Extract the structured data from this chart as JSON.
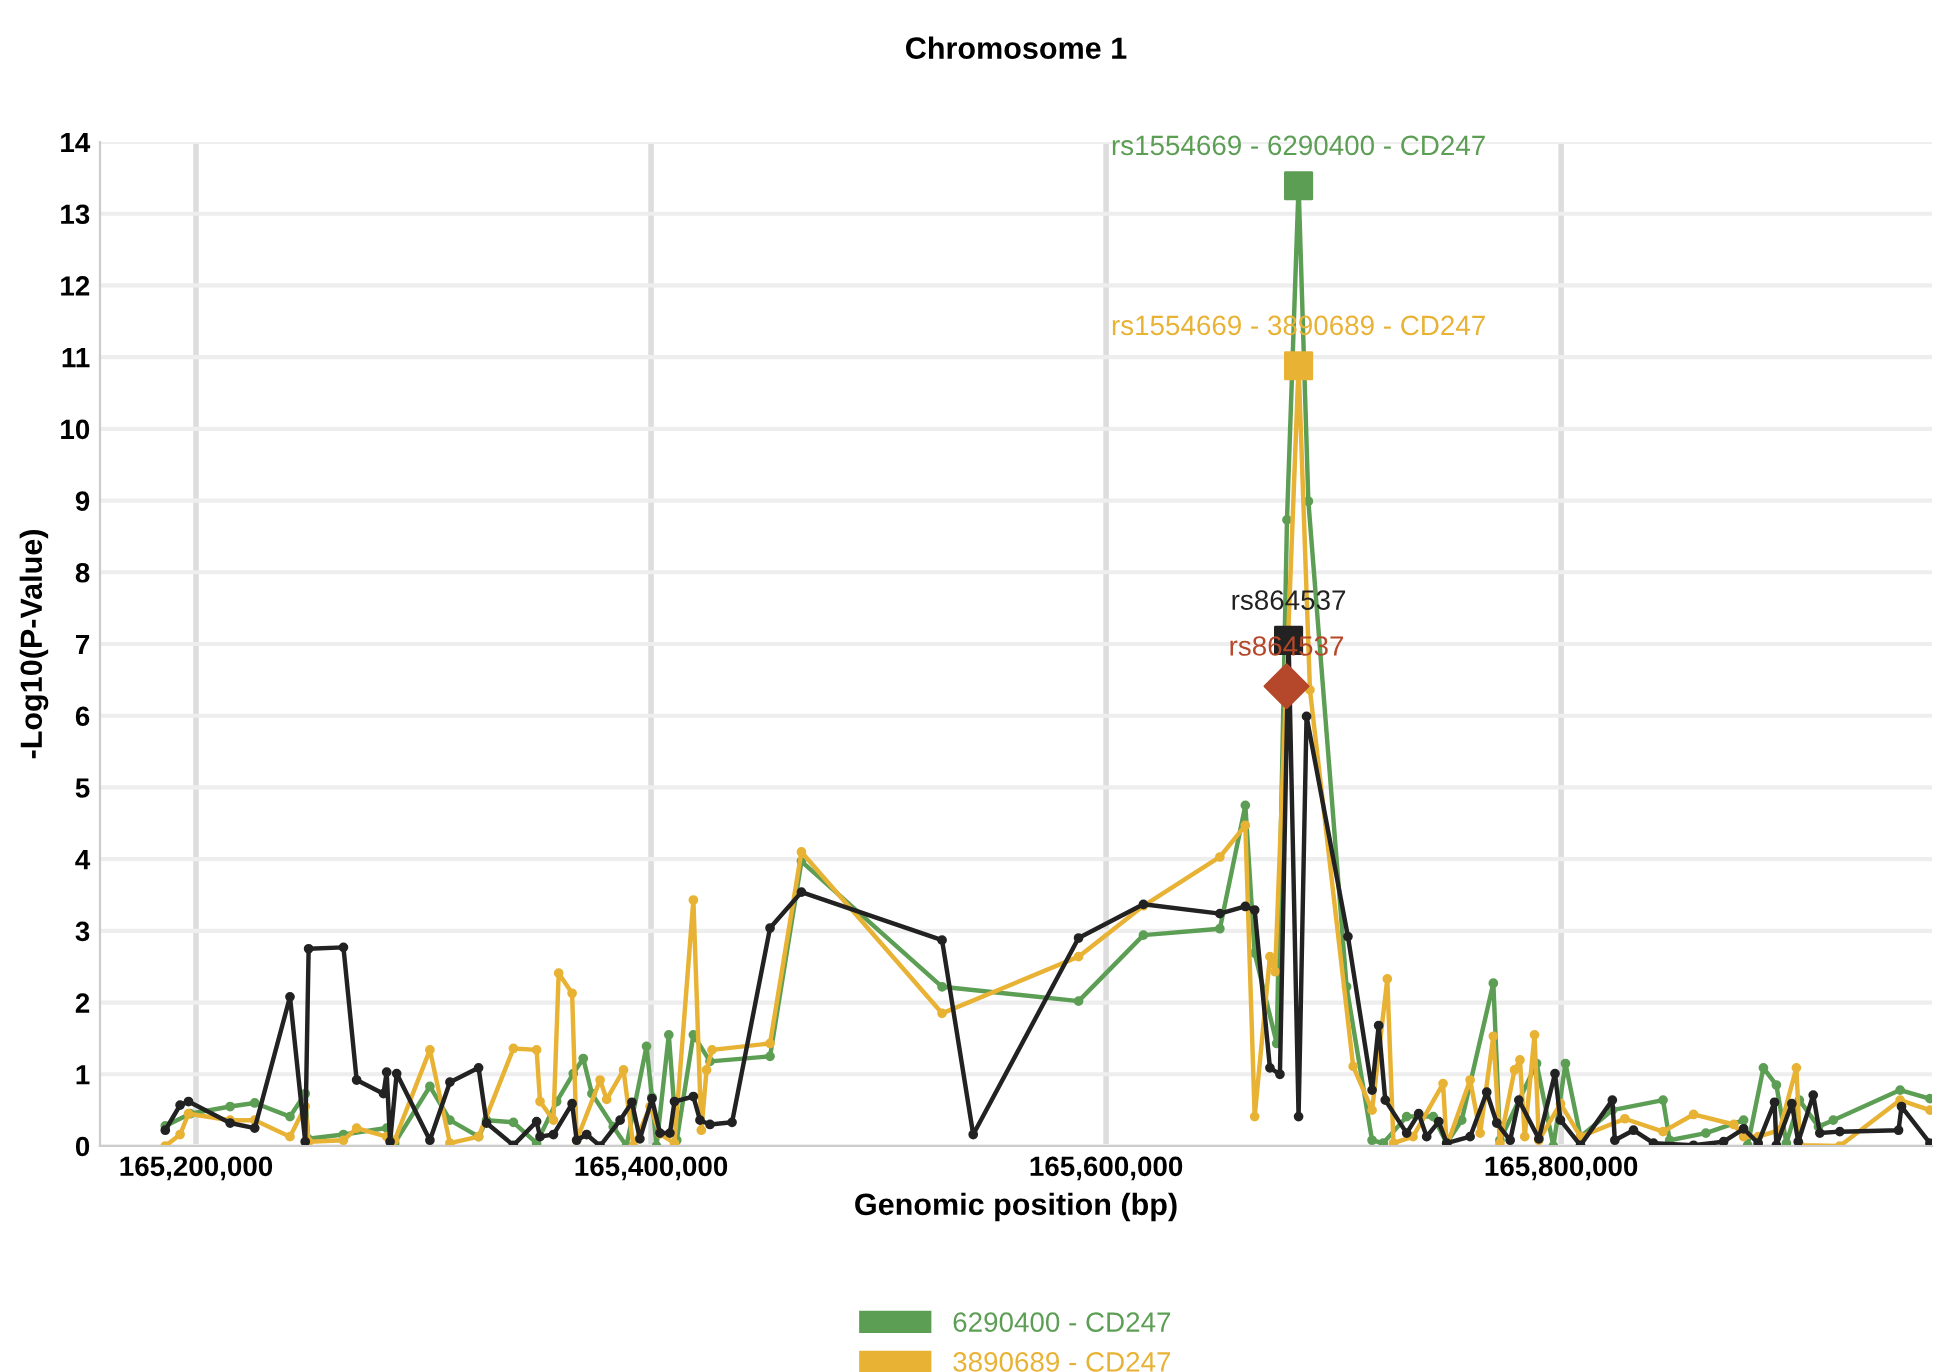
{
  "chart_data": {
    "type": "line",
    "title": "Chromosome 1",
    "xlabel": "Genomic position (bp)",
    "ylabel": "-Log10(P-Value)",
    "xlim": [
      165157800,
      165963000
    ],
    "ylim": [
      0,
      14
    ],
    "xticks": [
      {
        "value": 165200000,
        "label": "165,200,000"
      },
      {
        "value": 165400000,
        "label": "165,400,000"
      },
      {
        "value": 165600000,
        "label": "165,600,000"
      },
      {
        "value": 165800000,
        "label": "165,800,000"
      }
    ],
    "yticks": [
      0,
      1,
      2,
      3,
      4,
      5,
      6,
      7,
      8,
      9,
      10,
      11,
      12,
      13,
      14
    ],
    "grid": true,
    "legend": "bottom",
    "marker": "circle",
    "line_style": "solid",
    "series": [
      {
        "name": "6290400 - CD247",
        "color": "#5d9e55",
        "x": [
          165186500,
          165197400,
          165215000,
          165225800,
          165241300,
          165248000,
          165249300,
          165264800,
          165283800,
          165287300,
          165302800,
          165311600,
          165324200,
          165327700,
          165339500,
          165349700,
          165358500,
          165365800,
          165370200,
          165374000,
          165383400,
          165389200,
          165398000,
          165400400,
          165402400,
          165407800,
          165411300,
          165418600,
          165425900,
          165452300,
          165466100,
          165527900,
          165587900,
          165616400,
          165650000,
          165661200,
          165665300,
          165675000,
          165679500,
          165684600,
          165688900,
          165705700,
          165716900,
          165721800,
          165732100,
          165743800,
          165749700,
          165756300,
          165770200,
          165773100,
          165789200,
          165796600,
          165801900,
          165808500,
          165822500,
          165844800,
          165847700,
          165863600,
          165880200,
          165882000,
          165888900,
          165894600,
          165899000,
          165904700,
          165913100,
          165919600,
          165949000,
          165962100
        ],
        "values": [
          0.28,
          0.45,
          0.55,
          0.6,
          0.41,
          0.73,
          0.1,
          0.16,
          0.25,
          0.04,
          0.83,
          0.36,
          0.13,
          0.36,
          0.33,
          0.04,
          0.62,
          1.01,
          1.22,
          0.73,
          0.27,
          0.0,
          1.39,
          0.68,
          0.0,
          1.55,
          0.08,
          1.55,
          1.18,
          1.25,
          3.97,
          2.22,
          2.02,
          2.94,
          3.03,
          4.75,
          2.69,
          1.43,
          8.73,
          13.39,
          8.99,
          2.22,
          0.08,
          0.04,
          0.41,
          0.41,
          0.04,
          0.36,
          2.27,
          0.08,
          1.15,
          0.0,
          1.15,
          0.13,
          0.5,
          0.64,
          0.08,
          0.18,
          0.36,
          0.01,
          1.09,
          0.85,
          0.04,
          0.64,
          0.27,
          0.36,
          0.78,
          0.66
        ]
      },
      {
        "name": "3890689 - CD247",
        "color": "#e8b234",
        "x": [
          165186500,
          165193000,
          165196700,
          165215000,
          165225800,
          165241300,
          165248000,
          165249500,
          165264800,
          165270600,
          165283800,
          165287300,
          165302800,
          165311600,
          165324200,
          165339500,
          165349700,
          165351200,
          165357100,
          165359400,
          165365300,
          165367300,
          165377600,
          165380500,
          165387900,
          165392200,
          165399600,
          165403900,
          165410300,
          165418600,
          165422100,
          165424400,
          165426800,
          165452300,
          165466100,
          165527900,
          165587900,
          165616400,
          165650000,
          165661200,
          165665300,
          165672000,
          165674300,
          165684600,
          165689600,
          165708600,
          165716900,
          165723600,
          165726300,
          165734900,
          165748100,
          165749700,
          165760000,
          165764400,
          165770200,
          165773100,
          165779500,
          165781900,
          165784000,
          165788300,
          165790200,
          165799700,
          165808500,
          165828000,
          165844800,
          165858200,
          165875900,
          165880200,
          165886600,
          165896000,
          165903400,
          165905000,
          165922500,
          165949000,
          165962100
        ],
        "values": [
          0.0,
          0.16,
          0.45,
          0.36,
          0.36,
          0.13,
          0.55,
          0.06,
          0.08,
          0.25,
          0.13,
          0.08,
          1.34,
          0.04,
          0.13,
          1.36,
          1.34,
          0.62,
          0.36,
          2.41,
          2.13,
          0.08,
          0.92,
          0.65,
          1.06,
          0.0,
          0.55,
          0.17,
          0.04,
          3.43,
          0.22,
          1.06,
          1.34,
          1.43,
          4.1,
          1.85,
          2.64,
          3.35,
          4.03,
          4.47,
          0.41,
          2.64,
          2.43,
          10.88,
          6.36,
          1.11,
          0.5,
          2.33,
          0.04,
          0.13,
          0.87,
          0.0,
          0.92,
          0.18,
          1.53,
          0.04,
          1.06,
          1.2,
          0.13,
          1.55,
          0.08,
          0.59,
          0.13,
          0.38,
          0.2,
          0.44,
          0.3,
          0.13,
          0.13,
          0.22,
          1.09,
          0.01,
          0.0,
          0.64,
          0.5
        ]
      },
      {
        "color": "#222222",
        "x": [
          165186500,
          165193000,
          165196700,
          165215000,
          165225800,
          165241300,
          165248000,
          165249500,
          165264800,
          165270600,
          165282400,
          165283800,
          165285300,
          165288200,
          165302800,
          165311600,
          165324200,
          165327700,
          165339500,
          165349700,
          165351200,
          165357100,
          165365300,
          165367300,
          165371700,
          165377600,
          165386400,
          165391600,
          165395100,
          165400400,
          165403900,
          165408300,
          165410300,
          165418600,
          165421500,
          165425900,
          165435600,
          165452300,
          165466100,
          165527900,
          165541600,
          165587900,
          165616400,
          165650000,
          165661200,
          165665300,
          165672000,
          165676400,
          165680200,
          165684600,
          165688100,
          165706300,
          165716900,
          165719800,
          165722700,
          165732100,
          165737400,
          165740900,
          165746200,
          165749700,
          165760000,
          165767300,
          165771700,
          165777600,
          165781400,
          165790200,
          165797300,
          165799700,
          165808500,
          165822500,
          165823600,
          165831800,
          165840600,
          165858200,
          165871400,
          165880200,
          165886600,
          165893800,
          165894600,
          165901400,
          165904200,
          165910800,
          165913700,
          165922500,
          165948300,
          165949600,
          165962100
        ],
        "values": [
          0.22,
          0.57,
          0.62,
          0.32,
          0.25,
          2.08,
          0.06,
          2.75,
          2.77,
          0.92,
          0.73,
          1.03,
          0.06,
          1.01,
          0.08,
          0.89,
          1.09,
          0.32,
          0.01,
          0.34,
          0.13,
          0.16,
          0.59,
          0.08,
          0.16,
          0.0,
          0.36,
          0.61,
          0.1,
          0.66,
          0.18,
          0.18,
          0.62,
          0.69,
          0.36,
          0.3,
          0.33,
          3.04,
          3.54,
          2.87,
          0.16,
          2.9,
          3.37,
          3.24,
          3.34,
          3.29,
          1.09,
          1.0,
          7.05,
          0.41,
          5.99,
          2.92,
          0.78,
          1.68,
          0.64,
          0.18,
          0.45,
          0.13,
          0.34,
          0.04,
          0.13,
          0.75,
          0.32,
          0.08,
          0.64,
          0.1,
          1.01,
          0.36,
          0.01,
          0.64,
          0.08,
          0.22,
          0.04,
          0.01,
          0.06,
          0.24,
          0.04,
          0.61,
          0.01,
          0.59,
          0.06,
          0.71,
          0.18,
          0.2,
          0.22,
          0.55,
          0.04
        ]
      },
      {
        "type": "scatter",
        "marker": "diamond",
        "color": "#b5482a",
        "x": [
          165679300
        ],
        "values": [
          6.41
        ]
      }
    ],
    "annotations": [
      {
        "text": "rs1554669 - 6290400 - CD247",
        "x": 165684600,
        "y": 13.39
      },
      {
        "text": "rs1554669 - 3890689 - CD247",
        "x": 165684600,
        "y": 10.88
      },
      {
        "text": "rs864537",
        "x": 165680200,
        "y": 7.05
      },
      {
        "text": "rs864537",
        "x": 165679300,
        "y": 6.41
      }
    ]
  }
}
